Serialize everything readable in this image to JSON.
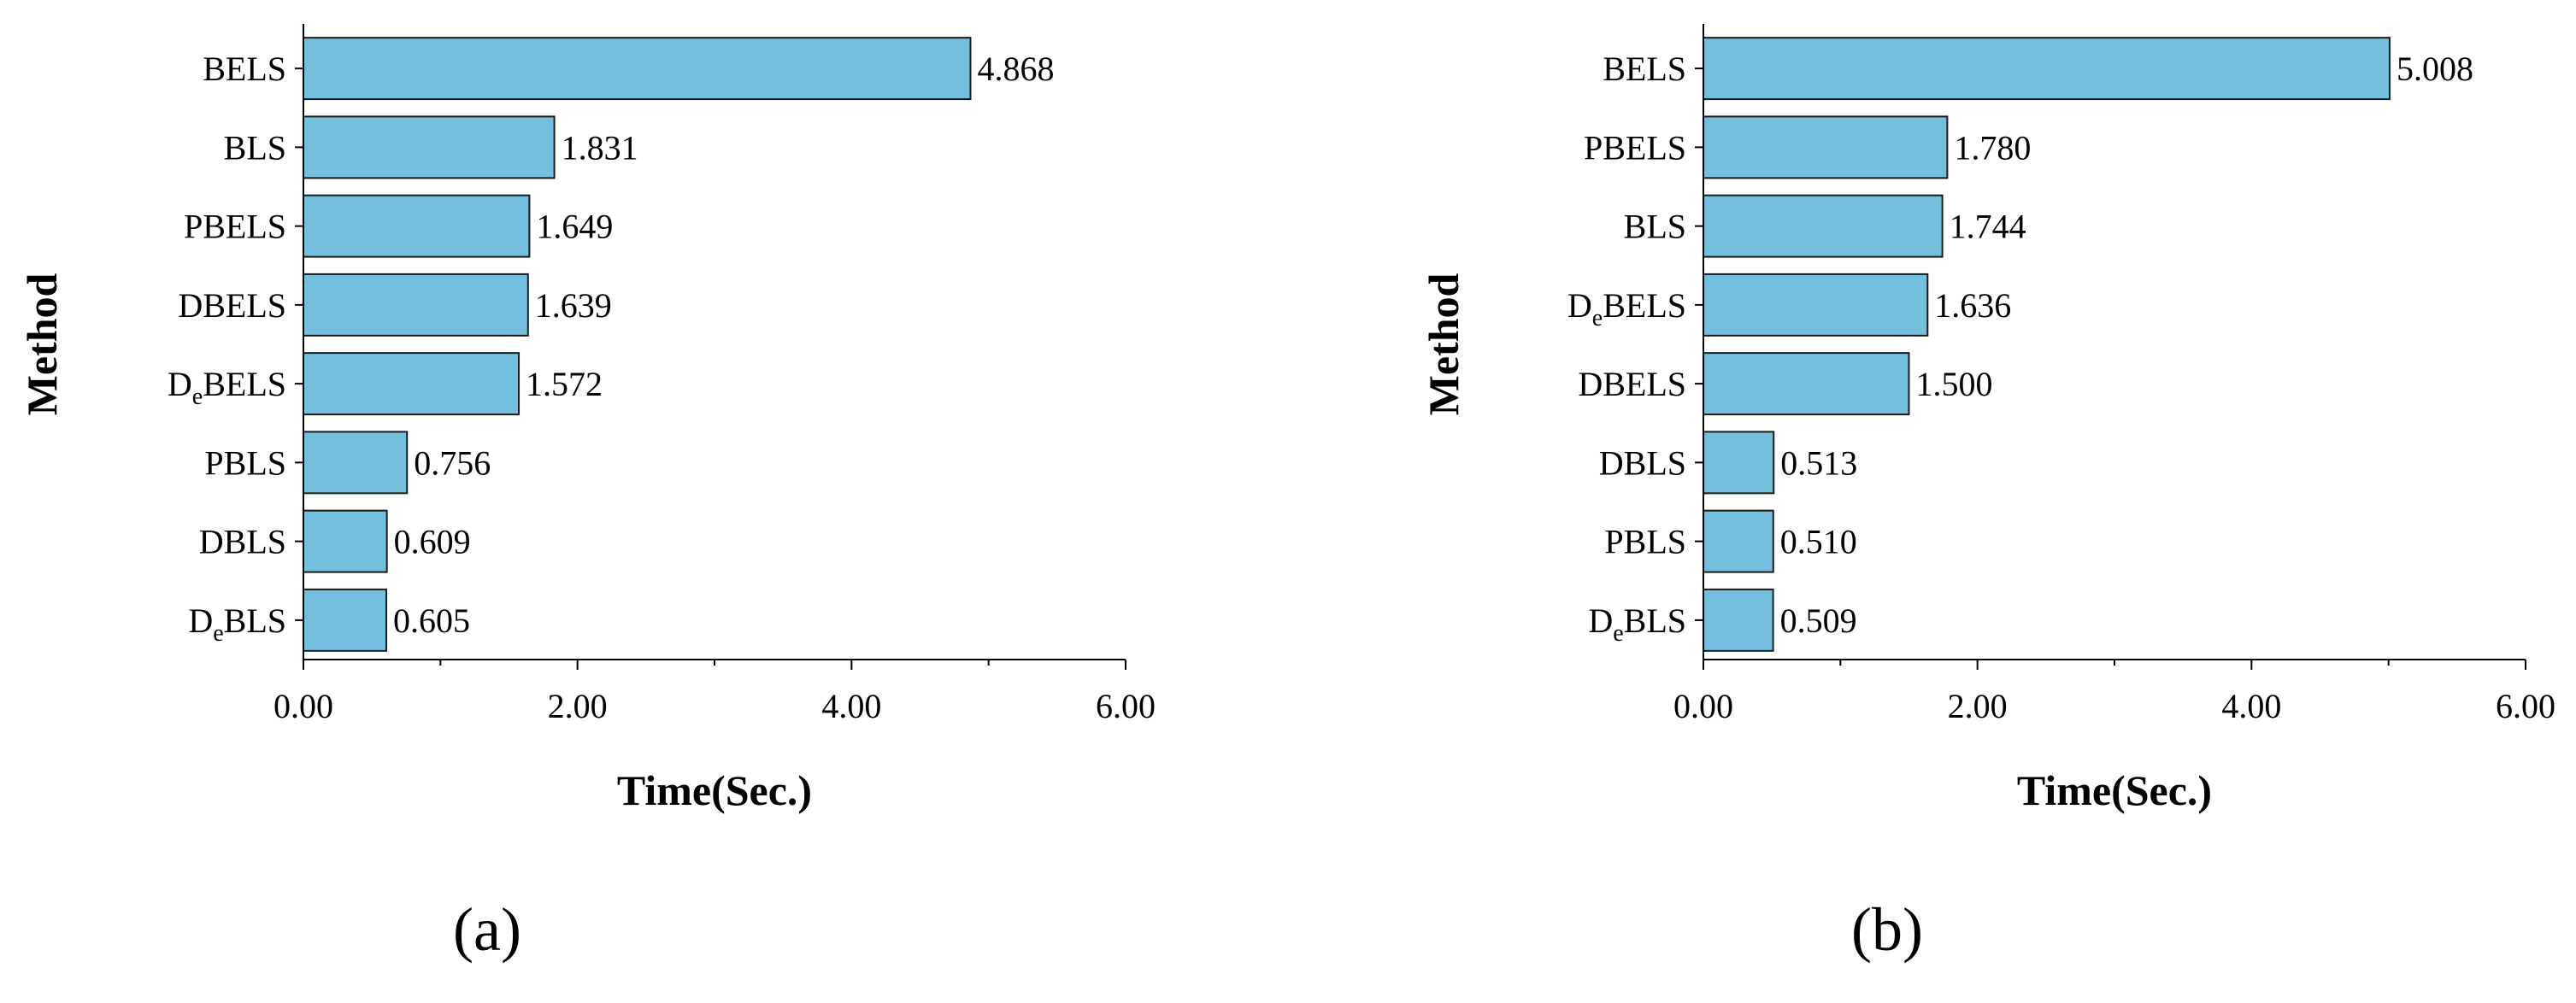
{
  "colors": {
    "bar_fill": "#74bfdd",
    "bar_stroke": "#1a1a1a",
    "axis": "#000000"
  },
  "chart_data": [
    {
      "type": "bar",
      "orientation": "horizontal",
      "panel_label": "(a)",
      "xlabel": "Time(Sec.)",
      "ylabel": "Method",
      "xlim": [
        0,
        6
      ],
      "xticks": [
        0,
        2,
        4,
        6
      ],
      "xtick_labels": [
        "0.00",
        "2.00",
        "4.00",
        "6.00"
      ],
      "categories": [
        {
          "base": "BELS",
          "sub": "",
          "tail": ""
        },
        {
          "base": "BLS",
          "sub": "",
          "tail": ""
        },
        {
          "base": "PBELS",
          "sub": "",
          "tail": ""
        },
        {
          "base": "DBELS",
          "sub": "",
          "tail": ""
        },
        {
          "base": "D",
          "sub": "e",
          "tail": "BELS"
        },
        {
          "base": "PBLS",
          "sub": "",
          "tail": ""
        },
        {
          "base": "DBLS",
          "sub": "",
          "tail": ""
        },
        {
          "base": "D",
          "sub": "e",
          "tail": "BLS"
        }
      ],
      "values": [
        4.868,
        1.831,
        1.649,
        1.639,
        1.572,
        0.756,
        0.609,
        0.605
      ],
      "value_labels": [
        "4.868",
        "1.831",
        "1.649",
        "1.639",
        "1.572",
        "0.756",
        "0.609",
        "0.605"
      ]
    },
    {
      "type": "bar",
      "orientation": "horizontal",
      "panel_label": "(b)",
      "xlabel": "Time(Sec.)",
      "ylabel": "Method",
      "xlim": [
        0,
        6
      ],
      "xticks": [
        0,
        2,
        4,
        6
      ],
      "xtick_labels": [
        "0.00",
        "2.00",
        "4.00",
        "6.00"
      ],
      "categories": [
        {
          "base": "BELS",
          "sub": "",
          "tail": ""
        },
        {
          "base": "PBELS",
          "sub": "",
          "tail": ""
        },
        {
          "base": "BLS",
          "sub": "",
          "tail": ""
        },
        {
          "base": "D",
          "sub": "e",
          "tail": "BELS"
        },
        {
          "base": "DBELS",
          "sub": "",
          "tail": ""
        },
        {
          "base": "DBLS",
          "sub": "",
          "tail": ""
        },
        {
          "base": "PBLS",
          "sub": "",
          "tail": ""
        },
        {
          "base": "D",
          "sub": "e",
          "tail": "BLS"
        }
      ],
      "values": [
        5.008,
        1.78,
        1.744,
        1.636,
        1.5,
        0.513,
        0.51,
        0.509
      ],
      "value_labels": [
        "5.008",
        "1.780",
        "1.744",
        "1.636",
        "1.500",
        "0.513",
        "0.510",
        "0.509"
      ]
    }
  ]
}
